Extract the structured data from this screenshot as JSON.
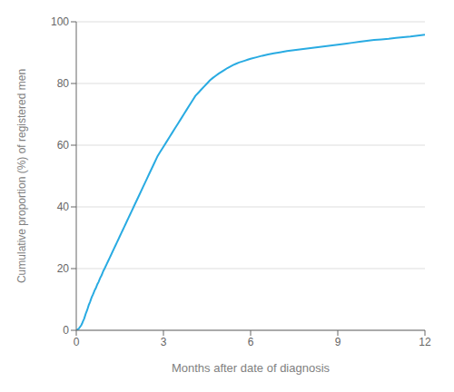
{
  "chart_data": {
    "type": "line",
    "xlabel": "Months after date of diagnosis",
    "ylabel": "Cumulative proportion (%) of registered men",
    "x": [
      0.0,
      0.03,
      0.07,
      0.1,
      0.13,
      0.17,
      0.2,
      0.23,
      0.27,
      0.3,
      0.33,
      0.37,
      0.4,
      0.43,
      0.47,
      0.5,
      0.53,
      0.57,
      0.6,
      0.63,
      0.67,
      0.7,
      0.73,
      0.77,
      0.8,
      0.83,
      0.87,
      0.9,
      0.93,
      0.97,
      1.0,
      1.05,
      1.1,
      1.15,
      1.2,
      1.25,
      1.3,
      1.35,
      1.4,
      1.45,
      1.5,
      1.55,
      1.6,
      1.65,
      1.7,
      1.75,
      1.8,
      1.85,
      1.9,
      1.95,
      2.0,
      2.1,
      2.2,
      2.3,
      2.4,
      2.5,
      2.6,
      2.7,
      2.8,
      2.9,
      3.0,
      3.1,
      3.2,
      3.3,
      3.4,
      3.5,
      3.6,
      3.7,
      3.8,
      3.9,
      4.0,
      4.1,
      4.2,
      4.3,
      4.4,
      4.5,
      4.6,
      4.7,
      4.8,
      4.9,
      5.0,
      5.1,
      5.2,
      5.3,
      5.4,
      5.5,
      5.6,
      5.7,
      5.8,
      5.9,
      6.0,
      6.2,
      6.4,
      6.6,
      6.8,
      7.0,
      7.25,
      7.5,
      7.75,
      8.0,
      8.25,
      8.5,
      8.75,
      9.0,
      9.25,
      9.5,
      9.75,
      10.0,
      10.25,
      10.5,
      10.75,
      11.0,
      11.25,
      11.5,
      11.75,
      12.0
    ],
    "values": [
      0.0,
      0.2,
      0.4,
      0.7,
      1.1,
      1.6,
      2.2,
      2.9,
      3.7,
      4.6,
      5.5,
      6.4,
      7.3,
      8.2,
      9.1,
      9.9,
      10.7,
      11.5,
      12.2,
      12.9,
      13.6,
      14.3,
      15.0,
      15.7,
      16.4,
      17.1,
      17.8,
      18.5,
      19.2,
      19.9,
      20.5,
      21.5,
      22.5,
      23.5,
      24.5,
      25.5,
      26.5,
      27.5,
      28.5,
      29.5,
      30.5,
      31.5,
      32.5,
      33.5,
      34.5,
      35.5,
      36.5,
      37.5,
      38.5,
      39.5,
      40.5,
      42.5,
      44.5,
      46.5,
      48.5,
      50.5,
      52.5,
      54.5,
      56.5,
      58.0,
      59.5,
      61.0,
      62.5,
      64.0,
      65.5,
      67.0,
      68.5,
      70.0,
      71.5,
      73.0,
      74.5,
      76.0,
      77.0,
      78.0,
      79.0,
      80.0,
      81.0,
      81.8,
      82.5,
      83.2,
      83.8,
      84.4,
      85.0,
      85.5,
      86.0,
      86.4,
      86.8,
      87.1,
      87.4,
      87.7,
      88.0,
      88.5,
      89.0,
      89.4,
      89.8,
      90.1,
      90.5,
      90.8,
      91.1,
      91.4,
      91.7,
      92.0,
      92.3,
      92.6,
      92.9,
      93.2,
      93.5,
      93.8,
      94.1,
      94.3,
      94.5,
      94.8,
      95.0,
      95.2,
      95.5,
      95.8
    ],
    "color": "#29abe2",
    "xlim": [
      0,
      12
    ],
    "ylim": [
      0,
      100
    ],
    "xticks": [
      0,
      3,
      6,
      9,
      12
    ],
    "yticks": [
      0,
      20,
      40,
      60,
      80,
      100
    ],
    "grid": "y"
  }
}
